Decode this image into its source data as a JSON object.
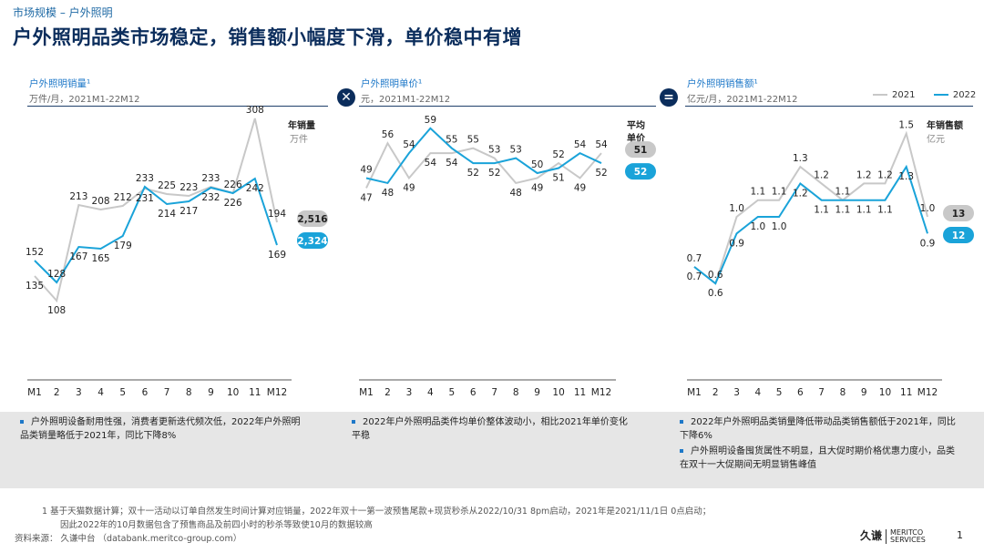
{
  "header": {
    "section": "市场规模 – 户外照明",
    "headline": "户外照明品类市场稳定，销售额小幅度下滑，单价稳中有增"
  },
  "legend": {
    "series_2021": "2021",
    "series_2022": "2022",
    "color_2021": "#c8c8c8",
    "color_2022": "#1aa3d9"
  },
  "operators": {
    "times": "✕",
    "equals": "="
  },
  "panels": [
    {
      "title": "户外照明销量¹",
      "sub": "万件/月，2021M1-22M12",
      "unit_label": "年销量",
      "unit_sub": "万件"
    },
    {
      "title": "户外照明单价¹",
      "sub": "元，2021M1-22M12",
      "unit_label_1": "平均",
      "unit_label_2": "单价",
      "unit_sub": "元"
    },
    {
      "title": "户外照明销售额¹",
      "sub": "亿元/月，2021M1-22M12",
      "unit_label": "年销售额",
      "unit_sub": "亿元"
    }
  ],
  "chart_data": [
    {
      "type": "line",
      "title": "户外照明销量¹",
      "x": [
        "M1",
        "2",
        "3",
        "4",
        "5",
        "6",
        "7",
        "8",
        "9",
        "10",
        "11",
        "M12"
      ],
      "series": [
        {
          "name": "2021",
          "values": [
            135,
            108,
            213,
            208,
            212,
            231,
            225,
            223,
            233,
            226,
            308,
            194
          ],
          "annual": "2,516"
        },
        {
          "name": "2022",
          "values": [
            152,
            128,
            167,
            165,
            179,
            233,
            214,
            217,
            232,
            226,
            242,
            169
          ],
          "annual": "2,324"
        }
      ],
      "labels_2021": [
        "135",
        "108",
        "213",
        "208",
        "212",
        "231",
        "225",
        "223",
        "233",
        "226",
        "308",
        "194"
      ],
      "labels_2022": [
        "152",
        "128",
        "167",
        "165",
        "179",
        "233",
        "214",
        "217",
        "232",
        "226",
        "242",
        "169"
      ],
      "ylim": [
        80,
        330
      ]
    },
    {
      "type": "line",
      "title": "户外照明单价¹",
      "x": [
        "M1",
        "2",
        "3",
        "4",
        "5",
        "6",
        "7",
        "8",
        "9",
        "10",
        "11",
        "M12"
      ],
      "series": [
        {
          "name": "2021",
          "values": [
            47,
            56,
            49,
            54,
            54,
            55,
            53,
            48,
            49,
            52,
            49,
            54
          ],
          "annual": "51"
        },
        {
          "name": "2022",
          "values": [
            49,
            48,
            54,
            59,
            55,
            52,
            52,
            53,
            50,
            51,
            54,
            52
          ],
          "annual": "52"
        }
      ],
      "labels_2021": [
        "47",
        "56",
        "49",
        "54",
        "54",
        "55",
        "53",
        "48",
        "49",
        "52",
        "49",
        "54"
      ],
      "labels_2022": [
        "49",
        "48",
        "54",
        "59",
        "55",
        "52",
        "52",
        "53",
        "50",
        "51",
        "54",
        "52"
      ],
      "ylim": [
        35,
        65
      ]
    },
    {
      "type": "line",
      "title": "户外照明销售额¹",
      "x": [
        "M1",
        "2",
        "3",
        "4",
        "5",
        "6",
        "7",
        "8",
        "9",
        "10",
        "11",
        "M12"
      ],
      "series": [
        {
          "name": "2021",
          "values": [
            0.7,
            0.6,
            1.0,
            1.1,
            1.1,
            1.3,
            1.2,
            1.1,
            1.2,
            1.2,
            1.5,
            1.0
          ],
          "annual": "13"
        },
        {
          "name": "2022",
          "values": [
            0.7,
            0.6,
            0.9,
            1.0,
            1.0,
            1.2,
            1.1,
            1.1,
            1.1,
            1.1,
            1.3,
            0.9
          ],
          "annual": "12"
        }
      ],
      "labels_2021": [
        "0.7",
        "0.6",
        "1.0",
        "1.1",
        "1.1",
        "1.3",
        "1.2",
        "1.1",
        "1.2",
        "1.2",
        "1.5",
        "1.0"
      ],
      "labels_2022": [
        "0.7",
        "0.6",
        "0.9",
        "1.0",
        "1.0",
        "1.2",
        "1.1",
        "1.1",
        "1.1",
        "1.1",
        "1.3",
        "0.9"
      ],
      "ylim": [
        0.3,
        1.7
      ]
    }
  ],
  "bullets": {
    "p1": [
      "户外照明设备耐用性强，消费者更新迭代频次低，2022年户外照明品类销量略低于2021年，同比下降8%"
    ],
    "p2": [
      "2022年户外照明品类件均单价整体波动小，相比2021年单价变化平稳"
    ],
    "p3": [
      "2022年户外照明品类销量降低带动品类销售额低于2021年，同比下降6%",
      "户外照明设备囤货属性不明显，且大促时期价格优惠力度小，品类在双十一大促期间无明显销售峰值"
    ]
  },
  "footnote": {
    "line1": "1   基于天猫数据计算；双十一活动以订单自然发生时间计算对应销量，2022年双十一第一波预售尾款+现货秒杀从2022/10/31 8pm启动，2021年是2021/11/1日 0点启动；",
    "line2": "因此2022年的10月数据包含了预售商品及前四小时的秒杀等致使10月的数据较高",
    "source": "资料来源：  久谦中台 （databank.meritco-group.com）"
  },
  "logo": {
    "cn": "久谦",
    "en1": "MERITCO",
    "en2": "SERVICES"
  },
  "page_number": "1"
}
